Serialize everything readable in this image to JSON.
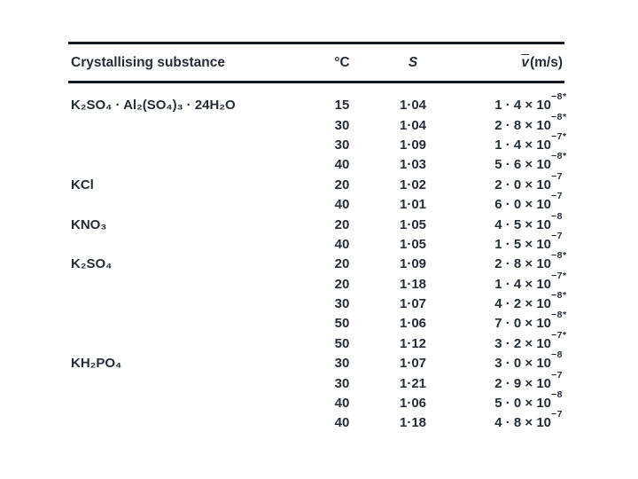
{
  "colors": {
    "text": "#272c37",
    "rule": "#16191f",
    "background": "#ffffff"
  },
  "table": {
    "headers": {
      "substance": "Crystallising substance",
      "temp": "°C",
      "s": "S",
      "v_bar": "v",
      "v_rest": "(m/s)"
    },
    "rows": [
      {
        "substance": "K₂SO₄ · Al₂(SO₄)₃ · 24H₂O",
        "temp": "15",
        "s": "1·04",
        "v_main": "1 · 4 × 10",
        "v_exp": "−8",
        "v_star": "*"
      },
      {
        "substance": "",
        "temp": "30",
        "s": "1·04",
        "v_main": "2 · 8 × 10",
        "v_exp": "−8",
        "v_star": "*"
      },
      {
        "substance": "",
        "temp": "30",
        "s": "1·09",
        "v_main": "1 · 4 × 10",
        "v_exp": "−7",
        "v_star": "*"
      },
      {
        "substance": "",
        "temp": "40",
        "s": "1·03",
        "v_main": "5 · 6 × 10",
        "v_exp": "−8",
        "v_star": "*"
      },
      {
        "substance": "KCl",
        "temp": "20",
        "s": "1·02",
        "v_main": "2 · 0 × 10",
        "v_exp": "−7",
        "v_star": ""
      },
      {
        "substance": "",
        "temp": "40",
        "s": "1·01",
        "v_main": "6 · 0 × 10",
        "v_exp": "−7",
        "v_star": ""
      },
      {
        "substance": "KNO₃",
        "temp": "20",
        "s": "1·05",
        "v_main": "4 · 5 × 10",
        "v_exp": "−8",
        "v_star": ""
      },
      {
        "substance": "",
        "temp": "40",
        "s": "1·05",
        "v_main": "1 · 5 × 10",
        "v_exp": "−7",
        "v_star": ""
      },
      {
        "substance": "K₂SO₄",
        "temp": "20",
        "s": "1·09",
        "v_main": "2 · 8 × 10",
        "v_exp": "−8",
        "v_star": "*"
      },
      {
        "substance": "",
        "temp": "20",
        "s": "1·18",
        "v_main": "1 · 4 × 10",
        "v_exp": "−7",
        "v_star": "*"
      },
      {
        "substance": "",
        "temp": "30",
        "s": "1·07",
        "v_main": "4 · 2 × 10",
        "v_exp": "−8",
        "v_star": "*"
      },
      {
        "substance": "",
        "temp": "50",
        "s": "1·06",
        "v_main": "7 · 0 × 10",
        "v_exp": "−8",
        "v_star": "*"
      },
      {
        "substance": "",
        "temp": "50",
        "s": "1·12",
        "v_main": "3 · 2 × 10",
        "v_exp": "−7",
        "v_star": "*"
      },
      {
        "substance": "KH₂PO₄",
        "temp": "30",
        "s": "1·07",
        "v_main": "3 · 0 × 10",
        "v_exp": "−8",
        "v_star": ""
      },
      {
        "substance": "",
        "temp": "30",
        "s": "1·21",
        "v_main": "2 · 9 × 10",
        "v_exp": "−7",
        "v_star": ""
      },
      {
        "substance": "",
        "temp": "40",
        "s": "1·06",
        "v_main": "5 · 0 × 10",
        "v_exp": "−8",
        "v_star": ""
      },
      {
        "substance": "",
        "temp": "40",
        "s": "1·18",
        "v_main": "4 · 8 × 10",
        "v_exp": "−7",
        "v_star": ""
      }
    ]
  }
}
